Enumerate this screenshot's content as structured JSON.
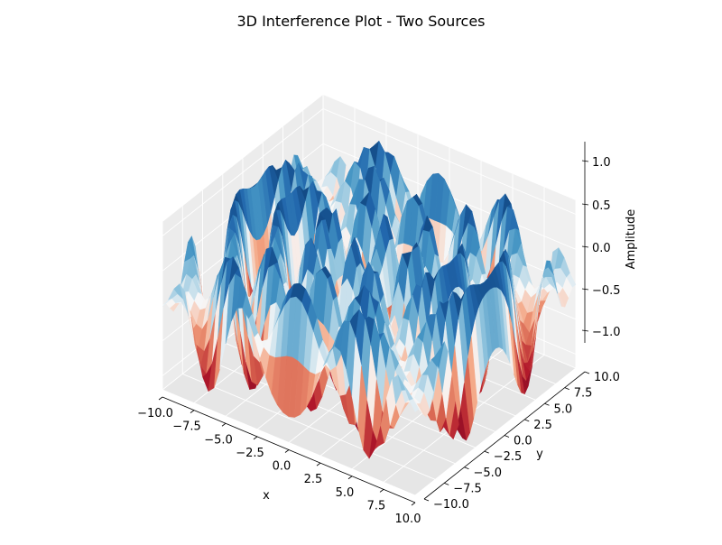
{
  "chart_data": {
    "type": "surface3d",
    "title": "3D Interference Plot - Two Sources",
    "xlabel": "x",
    "ylabel": "y",
    "zlabel": "Amplitude",
    "xlim": [
      -10,
      10
    ],
    "ylim": [
      -10,
      10
    ],
    "zlim": [
      -1.2,
      1.2
    ],
    "x_ticks": [
      "−10.0",
      "−7.5",
      "−5.0",
      "−2.5",
      "0.0",
      "2.5",
      "5.0",
      "7.5",
      "10.0"
    ],
    "y_ticks": [
      "−10.0",
      "−7.5",
      "−5.0",
      "−2.5",
      "0.0",
      "2.5",
      "5.0",
      "7.5",
      "10.0"
    ],
    "z_ticks": [
      "−1.0",
      "−0.5",
      "0.0",
      "0.5",
      "1.0"
    ],
    "x_tick_values": [
      -10,
      -7.5,
      -5,
      -2.5,
      0,
      2.5,
      5,
      7.5,
      10
    ],
    "y_tick_values": [
      -10,
      -7.5,
      -5,
      -2.5,
      0,
      2.5,
      5,
      7.5,
      10
    ],
    "z_tick_values": [
      -1,
      -0.5,
      0,
      0.5,
      1
    ],
    "colormap": "RdBu",
    "colors": {
      "low": "#67001f",
      "mid": "#f7f7f7",
      "high": "#053061",
      "pane": "#f2f2f2",
      "grid": "#d0d0d0"
    },
    "grid": true,
    "surface": {
      "function": "sin(r1) + sin(r2)",
      "sources": [
        [
          -3,
          0
        ],
        [
          3,
          0
        ]
      ],
      "z_range": [
        -1,
        1
      ]
    }
  }
}
